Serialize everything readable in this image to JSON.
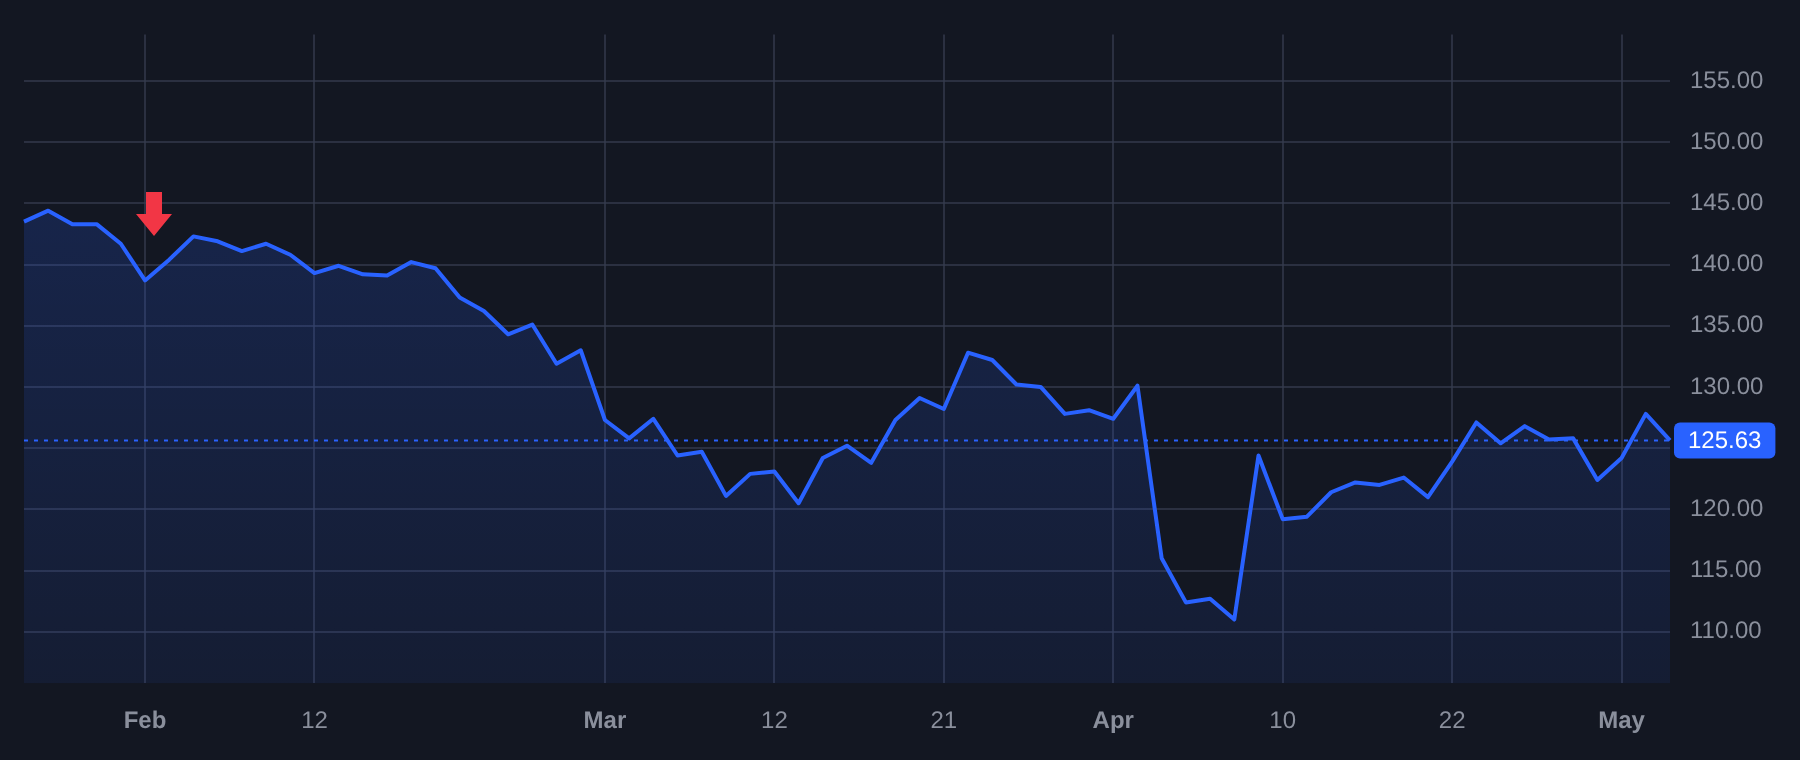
{
  "chart_data": {
    "type": "area",
    "categories": [
      null,
      null,
      null,
      null,
      null,
      "Feb",
      null,
      null,
      null,
      null,
      null,
      null,
      "12",
      null,
      null,
      null,
      null,
      null,
      null,
      null,
      null,
      null,
      null,
      null,
      "Mar",
      null,
      null,
      null,
      null,
      null,
      null,
      "12",
      null,
      null,
      null,
      null,
      null,
      null,
      "21",
      null,
      null,
      null,
      null,
      null,
      null,
      "Apr",
      null,
      null,
      null,
      null,
      null,
      null,
      "10",
      null,
      null,
      null,
      null,
      null,
      null,
      "22",
      null,
      null,
      null,
      null,
      null,
      null,
      "May",
      null,
      null
    ],
    "series": [
      {
        "color": "#2962ff",
        "values": [
          143.5,
          144.4,
          143.3,
          143.3,
          141.7,
          138.7,
          140.4,
          142.3,
          141.9,
          141.1,
          141.7,
          140.8,
          139.3,
          139.9,
          139.2,
          139.1,
          140.2,
          139.7,
          137.3,
          136.2,
          134.3,
          135.1,
          131.9,
          133.0,
          127.3,
          125.8,
          127.4,
          124.4,
          124.7,
          121.1,
          122.9,
          123.1,
          120.5,
          124.2,
          125.2,
          123.8,
          127.3,
          129.1,
          128.2,
          132.8,
          132.2,
          130.2,
          130.0,
          127.8,
          128.1,
          127.4,
          130.1,
          116.0,
          112.4,
          112.7,
          111.0,
          124.4,
          119.2,
          119.4,
          121.4,
          122.2,
          122.0,
          122.6,
          121.0,
          123.9,
          127.1,
          125.4,
          126.8,
          125.7,
          125.8,
          122.4,
          124.2,
          127.8,
          125.63
        ]
      }
    ],
    "ylim": [
      105.8,
      158.8
    ],
    "yticks": [
      {
        "value": 110,
        "label": "110.00"
      },
      {
        "value": 115,
        "label": "115.00"
      },
      {
        "value": 120,
        "label": "120.00"
      },
      {
        "value": 125,
        "label": null
      },
      {
        "value": 130,
        "label": "130.00"
      },
      {
        "value": 135,
        "label": "135.00"
      },
      {
        "value": 140,
        "label": "140.00"
      },
      {
        "value": 145,
        "label": "145.00"
      },
      {
        "value": 150,
        "label": "150.00"
      },
      {
        "value": 155,
        "label": "155.00"
      }
    ],
    "ref_lines": [
      {
        "axis": "y",
        "value": 125.63,
        "label": "125.63",
        "color": "#2962ff",
        "line_style": "dotted"
      }
    ],
    "grid": true,
    "marker": "none",
    "line_style": "solid"
  }
}
